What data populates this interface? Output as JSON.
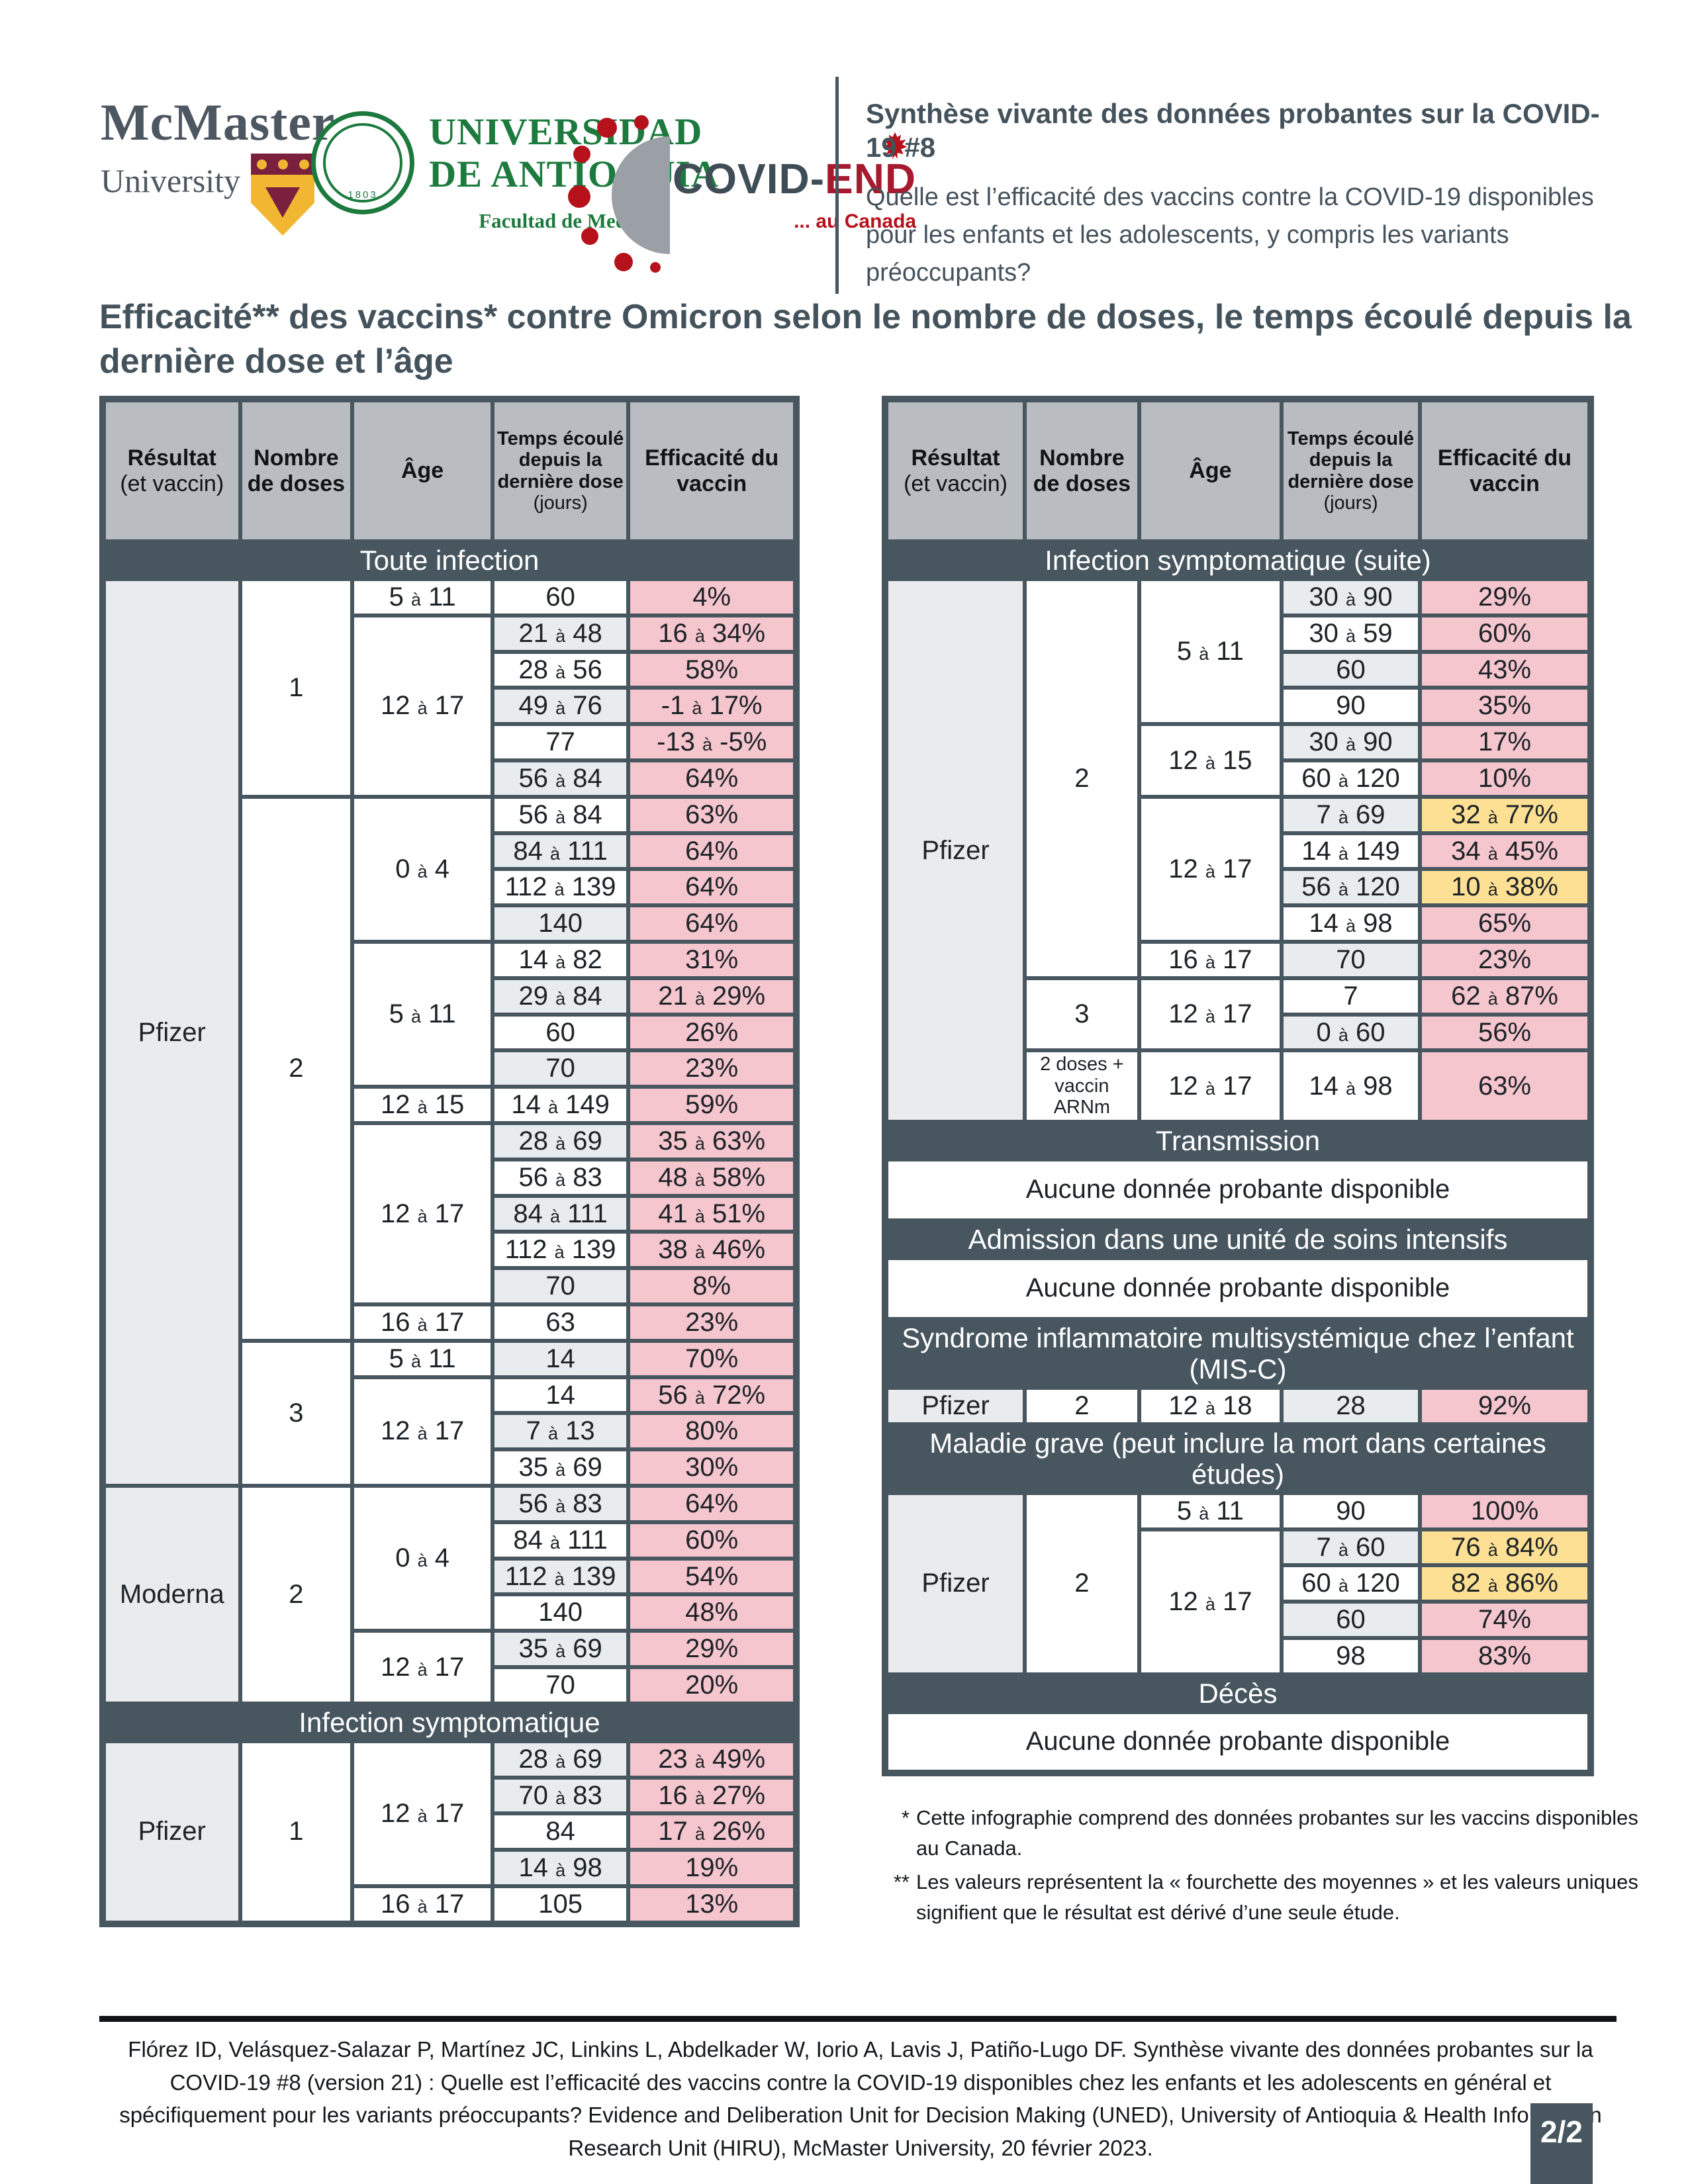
{
  "page": {
    "badge": "2/2"
  },
  "logos": {
    "mcmaster": {
      "line1": "McMaster",
      "line2": "University"
    },
    "udea": {
      "line1": "UNIVERSIDAD",
      "line2": "DE ANTIOQUIA",
      "line3": "Facultad de Medicina",
      "seal_year": "1803"
    },
    "covidend": {
      "part1": "COVID-",
      "part2": "END",
      "tagline": "... au Canada"
    }
  },
  "header": {
    "title": "Synthèse vivante des données probantes sur la COVID-19 #8",
    "subtitle": "Quelle est l’efficacité des vaccins contre la COVID-19 disponibles pour les enfants et les adolescents, y compris les variants préoccupants?"
  },
  "main_title": "Efficacité** des vaccins* contre Omicron selon le nombre de doses, le temps écoulé depuis la dernière dose et l’âge",
  "colors": {
    "accent_slate": "#47565f",
    "pink": "#f6c6cf",
    "yellow": "#fde094",
    "header_gray": "#b9bdc1"
  },
  "table_headers": [
    {
      "b": "Résultat",
      "n": "(et vaccin)"
    },
    {
      "b": "Nombre de doses"
    },
    {
      "b": "Âge"
    },
    {
      "b": "Temps écoulé depuis la dernière dose",
      "n": "(jours)",
      "small": true
    },
    {
      "b": "Efficacité du vaccin"
    }
  ],
  "left_table": {
    "sections": [
      {
        "title": "Toute infection",
        "groups": [
          {
            "vaccine": "Pfizer",
            "doses": [
              {
                "label": "1",
                "ages": [
                  {
                    "age": "5 à 11",
                    "rows": [
                      {
                        "d": "60",
                        "e": "4%",
                        "s": "w"
                      }
                    ]
                  },
                  {
                    "age": "12 à 17",
                    "rows": [
                      {
                        "d": "21 à 48",
                        "e": "16 à 34%",
                        "s": "g"
                      },
                      {
                        "d": "28 à 56",
                        "e": "58%",
                        "s": "w"
                      },
                      {
                        "d": "49 à 76",
                        "e": "-1 à 17%",
                        "s": "g"
                      },
                      {
                        "d": "77",
                        "e": "-13 à -5%",
                        "s": "w"
                      },
                      {
                        "d": "56 à 84",
                        "e": "64%",
                        "s": "g"
                      }
                    ]
                  }
                ]
              },
              {
                "label": "2",
                "ages": [
                  {
                    "age": "0 à 4",
                    "rows": [
                      {
                        "d": "56 à 84",
                        "e": "63%",
                        "s": "w"
                      },
                      {
                        "d": "84 à 111",
                        "e": "64%",
                        "s": "g"
                      },
                      {
                        "d": "112 à 139",
                        "e": "64%",
                        "s": "w"
                      },
                      {
                        "d": "140",
                        "e": "64%",
                        "s": "g"
                      }
                    ]
                  },
                  {
                    "age": "5 à 11",
                    "rows": [
                      {
                        "d": "14 à 82",
                        "e": "31%",
                        "s": "w"
                      },
                      {
                        "d": "29 à 84",
                        "e": "21 à 29%",
                        "s": "g"
                      },
                      {
                        "d": "60",
                        "e": "26%",
                        "s": "w"
                      },
                      {
                        "d": "70",
                        "e": "23%",
                        "s": "g"
                      }
                    ]
                  },
                  {
                    "age": "12 à 15",
                    "rows": [
                      {
                        "d": "14 à 149",
                        "e": "59%",
                        "s": "w"
                      }
                    ]
                  },
                  {
                    "age": "12 à 17",
                    "rows": [
                      {
                        "d": "28 à 69",
                        "e": "35 à 63%",
                        "s": "g"
                      },
                      {
                        "d": "56 à 83",
                        "e": "48 à 58%",
                        "s": "w"
                      },
                      {
                        "d": "84 à 111",
                        "e": "41 à 51%",
                        "s": "g"
                      },
                      {
                        "d": "112 à 139",
                        "e": "38 à 46%",
                        "s": "w"
                      },
                      {
                        "d": "70",
                        "e": "8%",
                        "s": "g"
                      }
                    ]
                  },
                  {
                    "age": "16 à 17",
                    "rows": [
                      {
                        "d": "63",
                        "e": "23%",
                        "s": "w"
                      }
                    ]
                  }
                ]
              },
              {
                "label": "3",
                "ages": [
                  {
                    "age": "5 à 11",
                    "rows": [
                      {
                        "d": "14",
                        "e": "70%",
                        "s": "g"
                      }
                    ]
                  },
                  {
                    "age": "12 à 17",
                    "rows": [
                      {
                        "d": "14",
                        "e": "56 à 72%",
                        "s": "w"
                      },
                      {
                        "d": "7 à 13",
                        "e": "80%",
                        "s": "g"
                      },
                      {
                        "d": "35 à 69",
                        "e": "30%",
                        "s": "w"
                      }
                    ]
                  }
                ]
              }
            ]
          },
          {
            "vaccine": "Moderna",
            "doses": [
              {
                "label": "2",
                "ages": [
                  {
                    "age": "0 à 4",
                    "rows": [
                      {
                        "d": "56 à 83",
                        "e": "64%",
                        "s": "g"
                      },
                      {
                        "d": "84 à 111",
                        "e": "60%",
                        "s": "w"
                      },
                      {
                        "d": "112 à 139",
                        "e": "54%",
                        "s": "g"
                      },
                      {
                        "d": "140",
                        "e": "48%",
                        "s": "w"
                      }
                    ]
                  },
                  {
                    "age": "12 à 17",
                    "rows": [
                      {
                        "d": "35 à 69",
                        "e": "29%",
                        "s": "g"
                      },
                      {
                        "d": "70",
                        "e": "20%",
                        "s": "w"
                      }
                    ]
                  }
                ]
              }
            ]
          }
        ]
      },
      {
        "title": "Infection symptomatique",
        "groups": [
          {
            "vaccine": "Pfizer",
            "doses": [
              {
                "label": "1",
                "ages": [
                  {
                    "age": "12 à 17",
                    "rows": [
                      {
                        "d": "28 à 69",
                        "e": "23 à 49%",
                        "s": "g"
                      },
                      {
                        "d": "70 à 83",
                        "e": "16 à 27%",
                        "s": "g"
                      },
                      {
                        "d": "84",
                        "e": "17 à 26%",
                        "s": "w"
                      },
                      {
                        "d": "14 à 98",
                        "e": "19%",
                        "s": "g"
                      }
                    ]
                  },
                  {
                    "age": "16 à 17",
                    "rows": [
                      {
                        "d": "105",
                        "e": "13%",
                        "s": "w"
                      }
                    ]
                  }
                ]
              }
            ]
          }
        ]
      }
    ]
  },
  "right_table": {
    "sections": [
      {
        "title": "Infection symptomatique (suite)",
        "groups": [
          {
            "vaccine": "Pfizer",
            "doses": [
              {
                "label": "2",
                "ages": [
                  {
                    "age": "5 à 11",
                    "rows": [
                      {
                        "d": "30 à 90",
                        "e": "29%",
                        "s": "g"
                      },
                      {
                        "d": "30 à 59",
                        "e": "60%",
                        "s": "w"
                      },
                      {
                        "d": "60",
                        "e": "43%",
                        "s": "g"
                      },
                      {
                        "d": "90",
                        "e": "35%",
                        "s": "w"
                      }
                    ]
                  },
                  {
                    "age": "12 à 15",
                    "rows": [
                      {
                        "d": "30 à 90",
                        "e": "17%",
                        "s": "g"
                      },
                      {
                        "d": "60 à 120",
                        "e": "10%",
                        "s": "w"
                      }
                    ]
                  },
                  {
                    "age": "12 à 17",
                    "rows": [
                      {
                        "d": "7 à 69",
                        "e": "32 à 77%",
                        "s": "g",
                        "hl": "y"
                      },
                      {
                        "d": "14 à 149",
                        "e": "34 à 45%",
                        "s": "w"
                      },
                      {
                        "d": "56 à 120",
                        "e": "10 à 38%",
                        "s": "g",
                        "hl": "y"
                      },
                      {
                        "d": "14 à 98",
                        "e": "65%",
                        "s": "w"
                      }
                    ]
                  },
                  {
                    "age": "16 à 17",
                    "rows": [
                      {
                        "d": "70",
                        "e": "23%",
                        "s": "g"
                      }
                    ]
                  }
                ]
              },
              {
                "label": "3",
                "ages": [
                  {
                    "age": "12 à 17",
                    "rows": [
                      {
                        "d": "7",
                        "e": "62 à 87%",
                        "s": "w"
                      },
                      {
                        "d": "0 à 60",
                        "e": "56%",
                        "s": "g"
                      }
                    ]
                  }
                ]
              },
              {
                "label": "2 doses + vaccin ARNm",
                "tall": true,
                "ages": [
                  {
                    "age": "12 à 17",
                    "rows": [
                      {
                        "d": "14 à 98",
                        "e": "63%",
                        "s": "w"
                      }
                    ]
                  }
                ]
              }
            ]
          }
        ]
      },
      {
        "title": "Transmission",
        "message": "Aucune donnée probante disponible"
      },
      {
        "title": "Admission dans une unité de soins intensifs",
        "message": "Aucune donnée probante disponible"
      },
      {
        "title": "Syndrome inflammatoire multisystémique chez l’enfant (MIS-C)",
        "groups": [
          {
            "vaccine": "Pfizer",
            "doses": [
              {
                "label": "2",
                "ages": [
                  {
                    "age": "12 à 18",
                    "rows": [
                      {
                        "d": "28",
                        "e": "92%",
                        "s": "g"
                      }
                    ]
                  }
                ]
              }
            ]
          }
        ]
      },
      {
        "title": "Maladie grave (peut inclure la mort dans certaines études)",
        "groups": [
          {
            "vaccine": "Pfizer",
            "doses": [
              {
                "label": "2",
                "ages": [
                  {
                    "age": "5 à 11",
                    "rows": [
                      {
                        "d": "90",
                        "e": "100%",
                        "s": "w"
                      }
                    ]
                  },
                  {
                    "age": "12 à 17",
                    "rows": [
                      {
                        "d": "7 à 60",
                        "e": "76 à 84%",
                        "s": "g",
                        "hl": "y"
                      },
                      {
                        "d": "60 à 120",
                        "e": "82 à 86%",
                        "s": "w",
                        "hl": "y"
                      },
                      {
                        "d": "60",
                        "e": "74%",
                        "s": "g"
                      },
                      {
                        "d": "98",
                        "e": "83%",
                        "s": "w"
                      }
                    ]
                  }
                ]
              }
            ]
          }
        ]
      },
      {
        "title": "Décès",
        "message": "Aucune donnée probante disponible"
      }
    ]
  },
  "footnotes": [
    {
      "marker": "*",
      "text": "Cette infographie comprend des données probantes sur les vaccins disponibles au Canada."
    },
    {
      "marker": "**",
      "text": "Les valeurs représentent la « fourchette des moyennes » et les valeurs uniques signifient que le résultat est dérivé d’une seule étude."
    }
  ],
  "citation": "Flórez ID, Velásquez-Salazar P, Martínez JC, Linkins L, Abdelkader W, Iorio A, Lavis J, Patiño-Lugo DF. Synthèse vivante des données probantes sur la COVID-19 #8 (version 21) : Quelle est l’efficacité des vaccins contre la COVID-19 disponibles chez les enfants et les adolescents en général et spécifiquement pour les variants préoccupants? Evidence and Deliberation Unit for Decision Making (UNED), University of Antioquia & Health Information Research Unit (HIRU), McMaster University, 20 février 2023."
}
